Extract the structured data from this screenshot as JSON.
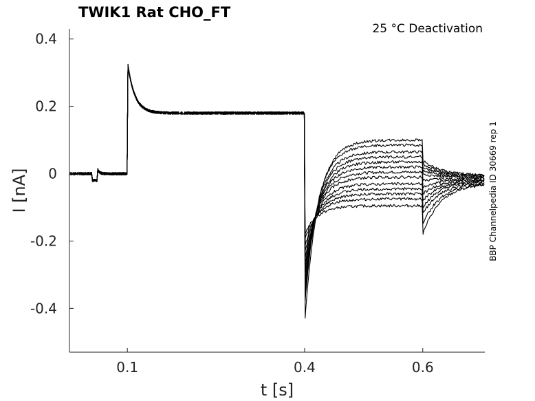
{
  "chart_data": {
    "type": "line",
    "title": "TWIK1  Rat  CHO_FT",
    "annotation": "25 °C  Deactivation",
    "side_label": "BBP Channelpedia ID 30669 rep 1",
    "xlabel": "t [s]",
    "ylabel": "I [nA]",
    "xlim": [
      0.002,
      0.705
    ],
    "ylim": [
      -0.53,
      0.43
    ],
    "x_ticks": [
      {
        "value": 0.1,
        "label": "0.1"
      },
      {
        "value": 0.4,
        "label": "0.4"
      },
      {
        "value": 0.6,
        "label": "0.6"
      }
    ],
    "y_ticks": [
      {
        "value": 0.4,
        "label": "0.4"
      },
      {
        "value": 0.2,
        "label": "0.2"
      },
      {
        "value": 0,
        "label": "0"
      },
      {
        "value": -0.2,
        "label": "-0.2"
      },
      {
        "value": -0.4,
        "label": "-0.4"
      }
    ],
    "protocol": {
      "baseline": 0.0,
      "prepulse_start": 0.04,
      "prepulse_end": 0.05,
      "prepulse_value": -0.02,
      "step1_start": 0.1,
      "step1_peak": 0.335,
      "step1_steady": 0.18,
      "step2_start": 0.4,
      "step3_start": 0.6,
      "end": 0.705
    },
    "series": [
      {
        "step2_peak": -0.45,
        "step2_steady": 0.1,
        "step3_peak": 0.04,
        "step3_final": -0.005
      },
      {
        "step2_peak": -0.4,
        "step2_steady": 0.085,
        "step3_peak": 0.03,
        "step3_final": -0.006
      },
      {
        "step2_peak": -0.38,
        "step2_steady": 0.065,
        "step3_peak": 0.02,
        "step3_final": -0.008
      },
      {
        "step2_peak": -0.36,
        "step2_steady": 0.05,
        "step3_peak": 0.01,
        "step3_final": -0.01
      },
      {
        "step2_peak": -0.34,
        "step2_steady": 0.035,
        "step3_peak": 0.0,
        "step3_final": -0.012
      },
      {
        "step2_peak": -0.32,
        "step2_steady": 0.02,
        "step3_peak": -0.02,
        "step3_final": -0.014
      },
      {
        "step2_peak": -0.3,
        "step2_steady": 0.005,
        "step3_peak": -0.04,
        "step3_final": -0.016
      },
      {
        "step2_peak": -0.28,
        "step2_steady": -0.01,
        "step3_peak": -0.06,
        "step3_final": -0.018
      },
      {
        "step2_peak": -0.26,
        "step2_steady": -0.03,
        "step3_peak": -0.08,
        "step3_final": -0.02
      },
      {
        "step2_peak": -0.24,
        "step2_steady": -0.045,
        "step3_peak": -0.1,
        "step3_final": -0.022
      },
      {
        "step2_peak": -0.22,
        "step2_steady": -0.06,
        "step3_peak": -0.12,
        "step3_final": -0.025
      },
      {
        "step2_peak": -0.2,
        "step2_steady": -0.075,
        "step3_peak": -0.15,
        "step3_final": -0.028
      },
      {
        "step2_peak": -0.18,
        "step2_steady": -0.095,
        "step3_peak": -0.18,
        "step3_final": -0.03
      }
    ]
  }
}
